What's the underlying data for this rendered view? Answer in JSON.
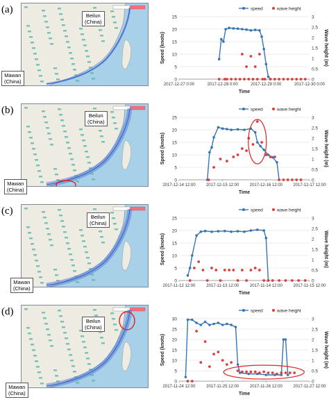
{
  "colors": {
    "speed": "#3674b4",
    "wave": "#d84040",
    "highlight": "#e02020",
    "water": "#a8d0e8",
    "land": "#eeebe3",
    "route": "#5b7fd6"
  },
  "panels": [
    {
      "label": "(a)",
      "map_labels": {
        "beilun": "Beilun\n(China)",
        "mawan": "Mawan\n(China)"
      },
      "chart_data": {
        "type": "scatter",
        "x_label": "Time",
        "y_label": "Speed (knots)",
        "y2_label": "Wave height (m)",
        "legend": [
          "speed",
          "wave height"
        ],
        "legend_position": "top-right",
        "x_ticks": [
          "2017-12-27 0:00",
          "2017-12-28 0:00",
          "2017-12-29 0:00",
          "2017-12-30 0:00"
        ],
        "y_ticks": [
          "0",
          "5",
          "10",
          "15",
          "20",
          "25"
        ],
        "y2_ticks": [
          "0",
          "0.5",
          "1",
          "1.5",
          "2",
          "2.5",
          "3"
        ],
        "x_range": [
          0,
          3
        ],
        "y_range": [
          0,
          25
        ],
        "y2_range": [
          0,
          3
        ],
        "series": [
          {
            "name": "speed",
            "axis": "left",
            "line": true,
            "x": [
              0.92,
              0.97,
              1.02,
              1.07,
              1.15,
              1.25,
              1.35,
              1.45,
              1.55,
              1.65,
              1.75,
              1.85,
              1.9,
              1.95,
              2.0,
              2.05,
              2.1
            ],
            "y": [
              8,
              16,
              15,
              20,
              20.5,
              20.3,
              20.2,
              20,
              19.8,
              19.5,
              19.7,
              19.5,
              17,
              12,
              6,
              1,
              0
            ]
          },
          {
            "name": "wave height",
            "axis": "right",
            "line": false,
            "x": [
              0.92,
              1.05,
              1.1,
              1.2,
              1.3,
              1.4,
              1.45,
              1.5,
              1.55,
              1.6,
              1.65,
              1.7,
              1.75,
              1.8,
              1.85,
              1.92,
              1.97,
              2.1,
              2.2,
              2.3,
              2.4,
              2.5,
              2.6,
              2.7,
              2.8,
              2.9
            ],
            "y": [
              0,
              0,
              0,
              0,
              0,
              0,
              1.2,
              0,
              0.6,
              0,
              1.1,
              0,
              0.6,
              0,
              1.2,
              0,
              0,
              0,
              0,
              0,
              0,
              0,
              0,
              0,
              0,
              0
            ]
          }
        ]
      }
    },
    {
      "label": "(b)",
      "map_labels": {
        "beilun": "Beilun\n(China)",
        "mawan": "Mawan\n(China)"
      },
      "chart_data": {
        "type": "scatter",
        "x_label": "Time",
        "y_label": "Speed (knots)",
        "y2_label": "Wave height (m)",
        "legend": [
          "speed",
          "wave height"
        ],
        "legend_position": "top-right",
        "x_ticks": [
          "2017-12-14 12:00",
          "2017-12-15 12:00",
          "2017-12-16 12:00",
          "2017-12-17 12:00"
        ],
        "y_ticks": [
          "0",
          "5",
          "10",
          "15",
          "20",
          "25"
        ],
        "y2_ticks": [
          "0",
          "0.5",
          "1",
          "1.5",
          "2",
          "2.5",
          "3"
        ],
        "x_range": [
          0,
          3
        ],
        "y_range": [
          0,
          25
        ],
        "y2_range": [
          0,
          3
        ],
        "series": [
          {
            "name": "speed",
            "axis": "left",
            "line": true,
            "x": [
              0.65,
              0.7,
              0.75,
              0.8,
              0.9,
              1.0,
              1.1,
              1.2,
              1.35,
              1.5,
              1.65,
              1.75,
              1.8,
              1.87,
              1.95,
              2.05,
              2.15,
              2.25,
              2.3
            ],
            "y": [
              0,
              11,
              13,
              17,
              21,
              20.5,
              20.3,
              20,
              20.2,
              20,
              20.5,
              19,
              15,
              13.5,
              12,
              10,
              9,
              7,
              0
            ]
          },
          {
            "name": "wave height",
            "axis": "right",
            "line": false,
            "x": [
              0.68,
              0.8,
              0.95,
              1.1,
              1.25,
              1.35,
              1.45,
              1.55,
              1.6,
              1.7,
              1.8,
              1.9,
              2.0,
              2.1,
              2.2,
              2.3,
              2.4,
              2.5,
              2.6,
              2.7,
              2.8
            ],
            "y": [
              0,
              0.6,
              1,
              0.9,
              1.1,
              1.2,
              1.5,
              1.4,
              2,
              1.7,
              2.8,
              1.8,
              1.2,
              1.1,
              1.1,
              0,
              0,
              0,
              0,
              0,
              0
            ]
          }
        ]
      }
    },
    {
      "label": "(c)",
      "map_labels": {
        "beilun": "Beilun\n(China)",
        "mawan": "Mawan\n(China)"
      },
      "chart_data": {
        "type": "scatter",
        "x_label": "Time",
        "y_label": "Speed (knots)",
        "y2_label": "Wave height (m)",
        "legend": [
          "speed",
          "wave height"
        ],
        "legend_position": "top-right",
        "x_ticks": [
          "2017-11-12 12:00",
          "2017-11-13 12:00",
          "2017-11-14 12:00",
          "2017-11-15 12:00"
        ],
        "y_ticks": [
          "0",
          "5",
          "10",
          "15",
          "20",
          "25"
        ],
        "y2_ticks": [
          "0",
          "0.5",
          "1",
          "1.5",
          "2",
          "2.5",
          "3"
        ],
        "x_range": [
          0,
          3
        ],
        "y_range": [
          0,
          25
        ],
        "y2_range": [
          0,
          3
        ],
        "series": [
          {
            "name": "speed",
            "axis": "left",
            "line": true,
            "x": [
              0.2,
              0.25,
              0.3,
              0.4,
              0.5,
              0.6,
              0.75,
              0.9,
              1.05,
              1.2,
              1.35,
              1.5,
              1.65,
              1.8,
              1.95,
              2.0,
              2.05
            ],
            "y": [
              2,
              5,
              10,
              18,
              19.5,
              19.8,
              19.5,
              19.7,
              19.8,
              19.5,
              19.7,
              19.5,
              20,
              20.3,
              20,
              17,
              0
            ]
          },
          {
            "name": "wave height",
            "axis": "right",
            "line": false,
            "x": [
              0.25,
              0.35,
              0.45,
              0.55,
              0.65,
              0.75,
              0.85,
              0.95,
              1.05,
              1.15,
              1.25,
              1.35,
              1.45,
              1.55,
              1.65,
              1.75,
              1.85,
              1.95,
              2.05,
              2.15,
              2.3,
              2.45,
              2.6,
              2.75,
              2.9
            ],
            "y": [
              0,
              0.6,
              0.9,
              0.5,
              0,
              0.6,
              0.5,
              0,
              0.5,
              0.5,
              0.5,
              0,
              0.5,
              0,
              0.5,
              0.6,
              0.5,
              0,
              0,
              0,
              0,
              0,
              0,
              0,
              0
            ]
          }
        ]
      }
    },
    {
      "label": "(d)",
      "map_labels": {
        "beilun": "Beilun\n(China)",
        "mawan": "Mawan\n(China)"
      },
      "chart_data": {
        "type": "scatter",
        "x_label": "Time",
        "y_label": "Speed (knots)",
        "y2_label": "Wave height (m)",
        "legend": [
          "speed",
          "wave height"
        ],
        "legend_position": "top-right",
        "x_ticks": [
          "2017-11-24 12:00",
          "2017-11-25 12:00",
          "2017-11-26 12:00",
          "2017-11-27 12:00"
        ],
        "y_ticks": [
          "0",
          "5",
          "10",
          "15",
          "20",
          "25",
          "30"
        ],
        "y2_ticks": [
          "0",
          "0.5",
          "1",
          "1.5",
          "2",
          "2.5",
          "3"
        ],
        "x_range": [
          0,
          3
        ],
        "y_range": [
          0,
          30
        ],
        "y2_range": [
          0,
          3
        ],
        "series": [
          {
            "name": "speed",
            "axis": "left",
            "line": true,
            "x": [
              0.15,
              0.2,
              0.3,
              0.4,
              0.5,
              0.6,
              0.7,
              0.8,
              0.9,
              1.0,
              1.1,
              1.2,
              1.3,
              1.35,
              1.4,
              1.6,
              1.8,
              2.0,
              2.2,
              2.35,
              2.4,
              2.45,
              2.5
            ],
            "y": [
              2,
              29.5,
              29.5,
              28,
              27,
              28.5,
              27,
              27.5,
              28,
              27,
              27.5,
              27,
              26,
              8,
              4,
              3.5,
              3.5,
              3,
              3,
              3,
              20,
              20,
              3
            ]
          },
          {
            "name": "wave height",
            "axis": "right",
            "line": false,
            "x": [
              0.2,
              0.3,
              0.4,
              0.5,
              0.6,
              0.7,
              0.8,
              0.9,
              1.0,
              1.1,
              1.2,
              1.35,
              1.45,
              1.55,
              1.65,
              1.75,
              1.85,
              1.95,
              2.05,
              2.15,
              2.25,
              2.35,
              2.45,
              2.55,
              2.65
            ],
            "y": [
              0,
              0,
              2.4,
              0.9,
              1.9,
              0.7,
              1.3,
              1.4,
              1,
              0.8,
              0.9,
              0.5,
              0.45,
              0.45,
              0.45,
              0.45,
              0.4,
              0.45,
              0.4,
              0.4,
              0.35,
              0.4,
              0.4,
              0.4,
              0.4
            ]
          }
        ]
      }
    }
  ]
}
